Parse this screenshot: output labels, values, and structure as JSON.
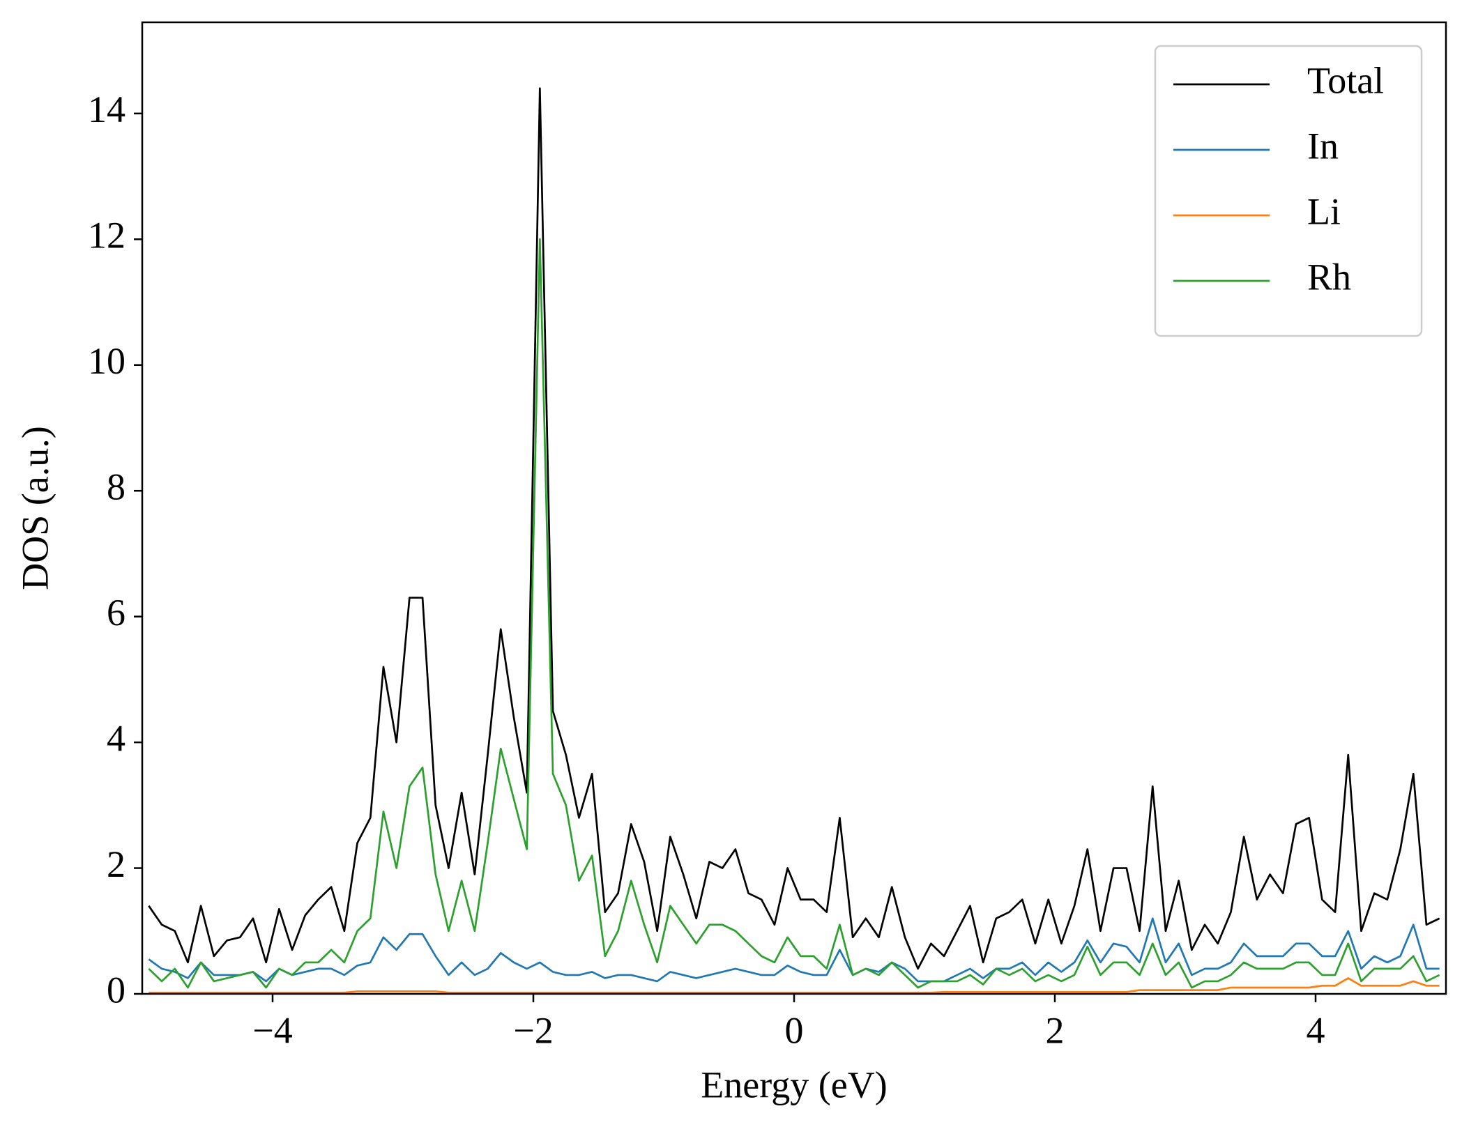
{
  "chart_data": {
    "type": "line",
    "xlabel": "Energy (eV)",
    "ylabel": "DOS (a.u.)",
    "xlim": [
      -5,
      5
    ],
    "ylim": [
      0,
      15.45
    ],
    "xticks": [
      {
        "value": -4,
        "label": "−4"
      },
      {
        "value": -2,
        "label": "−2"
      },
      0,
      2,
      4
    ],
    "yticks": [
      0,
      2,
      4,
      6,
      8,
      10,
      12,
      14
    ],
    "grid": false,
    "legend": "upper right",
    "x": [
      -4.95,
      -4.85,
      -4.75,
      -4.65,
      -4.55,
      -4.45,
      -4.35,
      -4.25,
      -4.15,
      -4.05,
      -3.95,
      -3.85,
      -3.75,
      -3.65,
      -3.55,
      -3.45,
      -3.35,
      -3.25,
      -3.15,
      -3.05,
      -2.95,
      -2.85,
      -2.75,
      -2.65,
      -2.55,
      -2.45,
      -2.35,
      -2.25,
      -2.15,
      -2.05,
      -1.95,
      -1.85,
      -1.75,
      -1.65,
      -1.55,
      -1.45,
      -1.35,
      -1.25,
      -1.15,
      -1.05,
      -0.95,
      -0.85,
      -0.75,
      -0.65,
      -0.55,
      -0.45,
      -0.35,
      -0.25,
      -0.15,
      -0.05,
      0.05,
      0.15,
      0.25,
      0.35,
      0.45,
      0.55,
      0.65,
      0.75,
      0.85,
      0.95,
      1.05,
      1.15,
      1.25,
      1.35,
      1.45,
      1.55,
      1.65,
      1.75,
      1.85,
      1.95,
      2.05,
      2.15,
      2.25,
      2.35,
      2.45,
      2.55,
      2.65,
      2.75,
      2.85,
      2.95,
      3.05,
      3.15,
      3.25,
      3.35,
      3.45,
      3.55,
      3.65,
      3.75,
      3.85,
      3.95,
      4.05,
      4.15,
      4.25,
      4.35,
      4.45,
      4.55,
      4.65,
      4.75,
      4.85,
      4.95
    ],
    "series": [
      {
        "name": "Total",
        "color": "#000000",
        "values": [
          1.4,
          1.1,
          1.0,
          0.5,
          1.4,
          0.6,
          0.85,
          0.9,
          1.2,
          0.5,
          1.35,
          0.7,
          1.25,
          1.5,
          1.7,
          1.0,
          2.4,
          2.8,
          5.2,
          4.0,
          6.3,
          6.3,
          3.0,
          2.0,
          3.2,
          1.9,
          3.8,
          5.8,
          4.4,
          3.2,
          14.4,
          4.5,
          3.8,
          2.8,
          3.5,
          1.3,
          1.6,
          2.7,
          2.1,
          1.0,
          2.5,
          1.9,
          1.2,
          2.1,
          2.0,
          2.3,
          1.6,
          1.5,
          1.1,
          2.0,
          1.5,
          1.5,
          1.3,
          2.8,
          0.9,
          1.2,
          0.9,
          1.7,
          0.9,
          0.4,
          0.8,
          0.6,
          1.0,
          1.4,
          0.5,
          1.2,
          1.3,
          1.5,
          0.8,
          1.5,
          0.8,
          1.4,
          2.3,
          1.0,
          2.0,
          2.0,
          1.0,
          3.3,
          1.0,
          1.8,
          0.7,
          1.1,
          0.8,
          1.3,
          2.5,
          1.5,
          1.9,
          1.6,
          2.7,
          2.8,
          1.5,
          1.3,
          3.8,
          1.0,
          1.6,
          1.5,
          2.3,
          3.5,
          1.1,
          1.2
        ]
      },
      {
        "name": "In",
        "color": "#1f77b4",
        "values": [
          0.55,
          0.4,
          0.35,
          0.25,
          0.5,
          0.3,
          0.3,
          0.3,
          0.35,
          0.2,
          0.4,
          0.3,
          0.35,
          0.4,
          0.4,
          0.3,
          0.45,
          0.5,
          0.9,
          0.7,
          0.95,
          0.95,
          0.6,
          0.3,
          0.5,
          0.3,
          0.4,
          0.65,
          0.5,
          0.4,
          0.5,
          0.35,
          0.3,
          0.3,
          0.35,
          0.25,
          0.3,
          0.3,
          0.25,
          0.2,
          0.35,
          0.3,
          0.25,
          0.3,
          0.35,
          0.4,
          0.35,
          0.3,
          0.3,
          0.45,
          0.35,
          0.3,
          0.3,
          0.7,
          0.3,
          0.4,
          0.35,
          0.5,
          0.4,
          0.2,
          0.2,
          0.2,
          0.3,
          0.4,
          0.25,
          0.4,
          0.4,
          0.5,
          0.3,
          0.5,
          0.35,
          0.5,
          0.85,
          0.5,
          0.8,
          0.75,
          0.5,
          1.2,
          0.5,
          0.8,
          0.3,
          0.4,
          0.4,
          0.5,
          0.8,
          0.6,
          0.6,
          0.6,
          0.8,
          0.8,
          0.6,
          0.6,
          1.0,
          0.4,
          0.6,
          0.5,
          0.6,
          1.1,
          0.4,
          0.4
        ]
      },
      {
        "name": "Li",
        "color": "#ff7f0e",
        "values": [
          0.02,
          0.02,
          0.02,
          0.02,
          0.02,
          0.02,
          0.02,
          0.02,
          0.02,
          0.02,
          0.02,
          0.02,
          0.02,
          0.02,
          0.02,
          0.02,
          0.04,
          0.04,
          0.04,
          0.04,
          0.04,
          0.04,
          0.04,
          0.02,
          0.02,
          0.02,
          0.02,
          0.02,
          0.02,
          0.02,
          0.02,
          0.02,
          0.02,
          0.02,
          0.02,
          0.02,
          0.02,
          0.02,
          0.02,
          0.02,
          0.02,
          0.02,
          0.02,
          0.02,
          0.02,
          0.02,
          0.02,
          0.02,
          0.02,
          0.02,
          0.02,
          0.02,
          0.02,
          0.02,
          0.02,
          0.02,
          0.02,
          0.02,
          0.02,
          0.02,
          0.02,
          0.03,
          0.03,
          0.03,
          0.03,
          0.03,
          0.03,
          0.03,
          0.03,
          0.03,
          0.03,
          0.03,
          0.03,
          0.03,
          0.03,
          0.03,
          0.06,
          0.06,
          0.06,
          0.06,
          0.06,
          0.06,
          0.06,
          0.1,
          0.1,
          0.1,
          0.1,
          0.1,
          0.1,
          0.1,
          0.13,
          0.13,
          0.25,
          0.13,
          0.13,
          0.13,
          0.13,
          0.2,
          0.13,
          0.13
        ]
      },
      {
        "name": "Rh",
        "color": "#2ca02c",
        "values": [
          0.4,
          0.2,
          0.4,
          0.1,
          0.5,
          0.2,
          0.25,
          0.3,
          0.35,
          0.1,
          0.4,
          0.3,
          0.5,
          0.5,
          0.7,
          0.5,
          1.0,
          1.2,
          2.9,
          2.0,
          3.3,
          3.6,
          1.9,
          1.0,
          1.8,
          1.0,
          2.4,
          3.9,
          3.1,
          2.3,
          12.0,
          3.5,
          3.0,
          1.8,
          2.2,
          0.6,
          1.0,
          1.8,
          1.1,
          0.5,
          1.4,
          1.1,
          0.8,
          1.1,
          1.1,
          1.0,
          0.8,
          0.6,
          0.5,
          0.9,
          0.6,
          0.6,
          0.4,
          1.1,
          0.3,
          0.4,
          0.3,
          0.5,
          0.3,
          0.1,
          0.2,
          0.2,
          0.2,
          0.3,
          0.15,
          0.4,
          0.3,
          0.4,
          0.2,
          0.3,
          0.2,
          0.3,
          0.75,
          0.3,
          0.5,
          0.5,
          0.3,
          0.8,
          0.3,
          0.5,
          0.1,
          0.2,
          0.2,
          0.3,
          0.5,
          0.4,
          0.4,
          0.4,
          0.5,
          0.5,
          0.3,
          0.3,
          0.8,
          0.2,
          0.4,
          0.4,
          0.4,
          0.6,
          0.2,
          0.3
        ]
      }
    ]
  }
}
